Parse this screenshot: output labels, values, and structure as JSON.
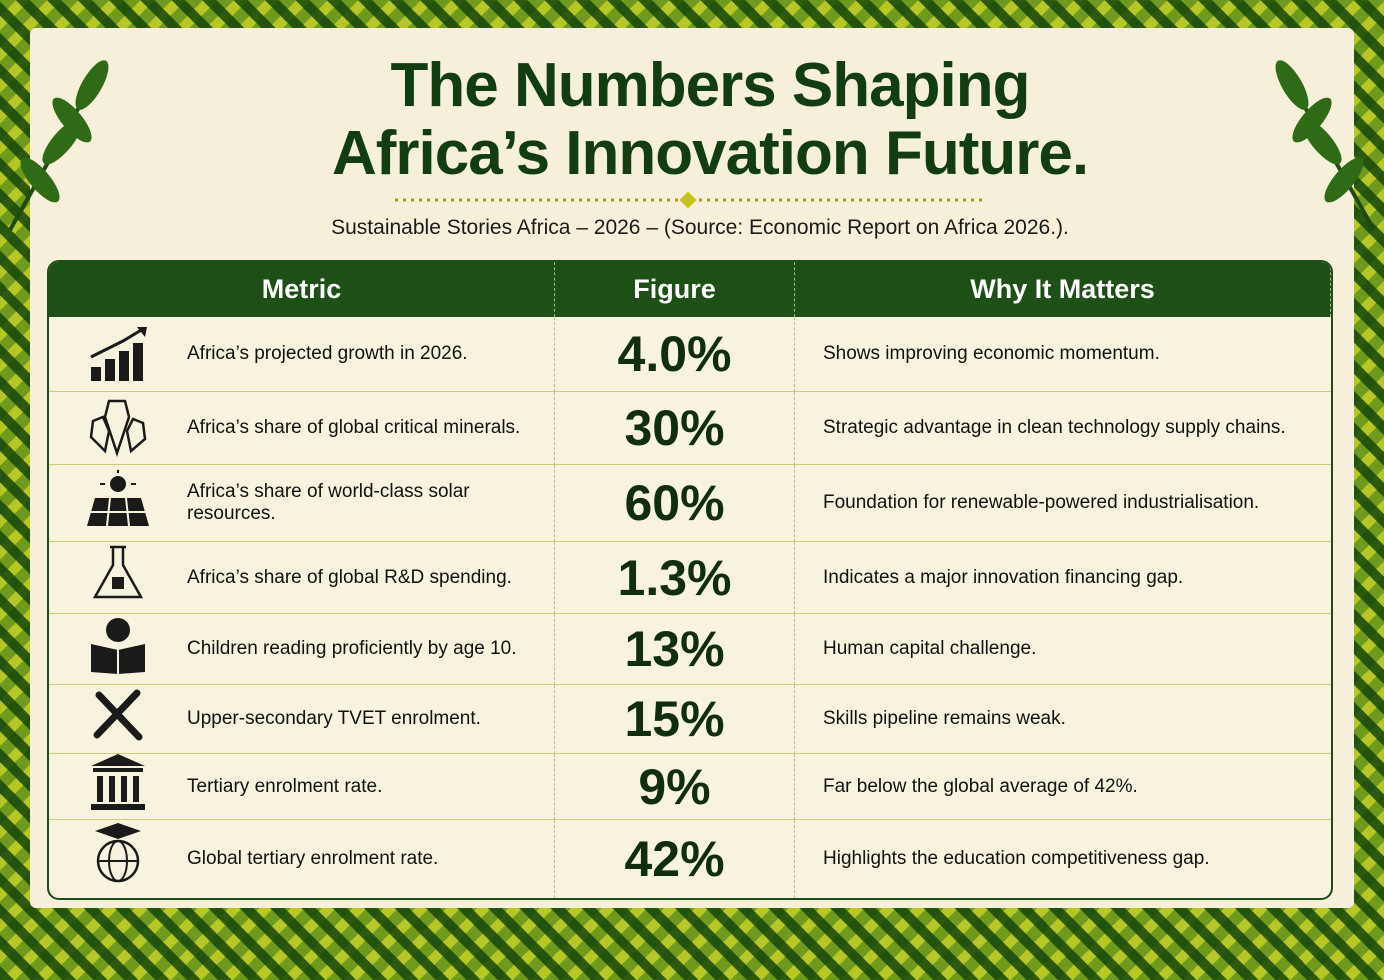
{
  "header": {
    "title_lines": [
      "The Numbers Shaping",
      "Africa’s Innovation Future."
    ],
    "subtitle": "Sustainable Stories Africa – 2026 – (Source: Economic Report on Africa 2026.)."
  },
  "table": {
    "columns": [
      "Metric",
      "Figure",
      "Why It Matters"
    ],
    "rows": [
      [
        "Africa’s projected growth in 2026.",
        "4.0%",
        "Shows improving economic momentum."
      ],
      [
        "Africa’s share of global critical minerals.",
        "30%",
        "Strategic advantage in clean technology supply chains."
      ],
      [
        "Africa’s share of world-class solar resources.",
        "60%",
        "Foundation for renewable-powered industrialisation."
      ],
      [
        "Africa’s share of global R&D spending.",
        "1.3%",
        "Indicates a major innovation financing gap."
      ],
      [
        "Children reading proficiently by age 10.",
        "13%",
        "Human capital challenge."
      ],
      [
        "Upper-secondary TVET enrolment.",
        "15%",
        "Skills pipeline remains weak."
      ],
      [
        "Tertiary enrolment rate.",
        "9%",
        "Far below the global average of 42%."
      ],
      [
        "Global tertiary enrolment rate.",
        "42%",
        "Highlights the education competitiveness gap."
      ]
    ]
  }
}
